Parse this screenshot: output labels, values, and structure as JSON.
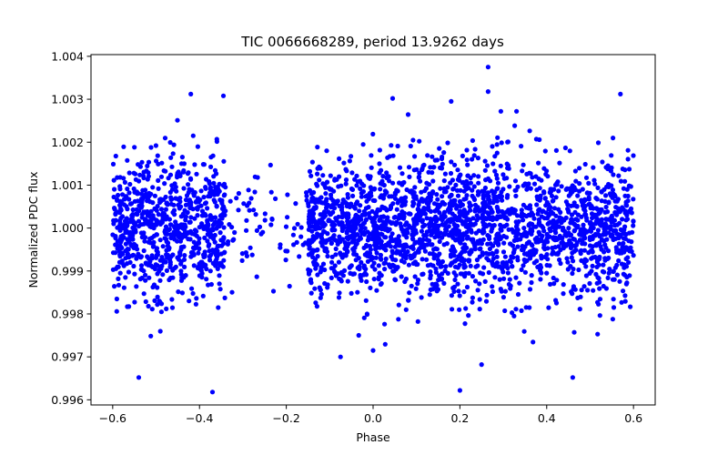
{
  "chart_data": {
    "type": "scatter",
    "title": "TIC 0066668289, period 13.9262 days",
    "xlabel": "Phase",
    "ylabel": "Normalized PDC flux",
    "xlim": [
      -0.65,
      0.65
    ],
    "ylim": [
      0.99588,
      1.00404
    ],
    "x_ticks": [
      -0.6,
      -0.4,
      -0.2,
      0.0,
      0.2,
      0.4,
      0.6
    ],
    "x_tick_labels": [
      "−0.6",
      "−0.4",
      "−0.2",
      "0.0",
      "0.2",
      "0.4",
      "0.6"
    ],
    "y_ticks": [
      0.996,
      0.997,
      0.998,
      0.999,
      1.0,
      1.001,
      1.002,
      1.003,
      1.004
    ],
    "y_tick_labels": [
      "0.996",
      "0.997",
      "0.998",
      "0.999",
      "1.000",
      "1.001",
      "1.002",
      "1.003",
      "1.004"
    ],
    "marker_color": "#0000ff",
    "grid": false,
    "series": [
      {
        "name": "flux",
        "description": "Dense cloud of ~3500 points spanning phase -0.6 to 0.6; flux scatters about 1.000 with std ~0.0008; a sparse gap near phase -0.33 to -0.15 (transit region).",
        "density_profile": [
          {
            "phase_range": [
              -0.6,
              -0.34
            ],
            "relative_density": 1.0
          },
          {
            "phase_range": [
              -0.34,
              -0.15
            ],
            "relative_density": 0.12
          },
          {
            "phase_range": [
              -0.15,
              0.6
            ],
            "relative_density": 1.0
          }
        ],
        "center": 1.0,
        "std": 0.0008,
        "notable_points": [
          {
            "x": 0.265,
            "y": 1.00375
          },
          {
            "x": -0.37,
            "y": 0.99618
          },
          {
            "x": 0.2,
            "y": 0.99622
          },
          {
            "x": -0.54,
            "y": 0.99652
          },
          {
            "x": 0.46,
            "y": 0.99652
          },
          {
            "x": -0.42,
            "y": 1.00312
          },
          {
            "x": 0.57,
            "y": 1.00312
          },
          {
            "x": -0.345,
            "y": 1.00308
          },
          {
            "x": 0.265,
            "y": 1.00318
          },
          {
            "x": 0.045,
            "y": 1.00302
          },
          {
            "x": 0.18,
            "y": 1.00295
          },
          {
            "x": -0.075,
            "y": 0.997
          },
          {
            "x": 0.0,
            "y": 0.99715
          },
          {
            "x": 0.25,
            "y": 0.99682
          }
        ]
      }
    ]
  }
}
